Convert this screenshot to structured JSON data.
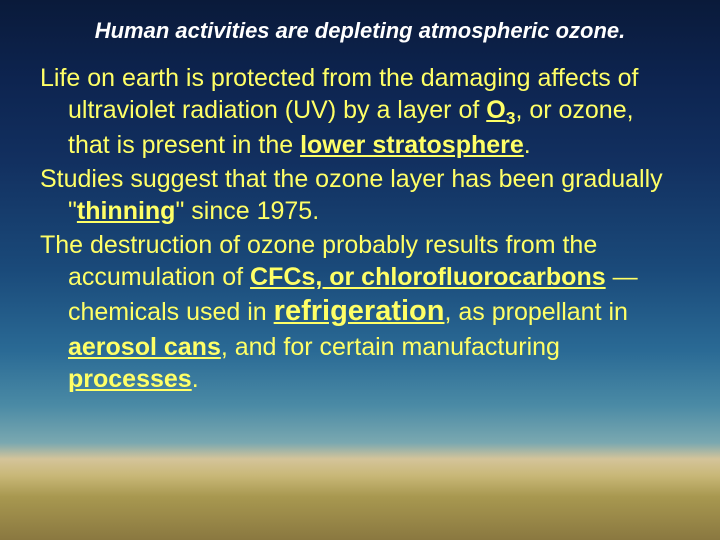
{
  "title": {
    "text": "Human activities are depleting atmospheric ozone.",
    "fontsize": 22,
    "color": "#ffffff"
  },
  "body": {
    "fontsize": 25,
    "color": "#ffff66",
    "p1_a": "Life on earth is protected from the damaging affects of ultraviolet radiation (UV) by a layer of ",
    "p1_o3": "O",
    "p1_sub": "3",
    "p1_b": ", or ozone, that is present in the ",
    "p1_lower": "lower stratosphere",
    "p1_c": ".",
    "p2_a": "Studies suggest that the ozone layer has been gradually \"",
    "p2_thin": "thinning",
    "p2_b": "\" since 1975.",
    "p3_a": "The destruction of ozone probably results from the accumulation of ",
    "p3_cfc": "CFCs, or chlorofluorocarbons",
    "p3_b": " — chemicals used in ",
    "p3_refrig": "refrigeration",
    "p3_c": ", as propellant in ",
    "p3_aero": "aerosol cans",
    "p3_d": ", and for certain manufacturing ",
    "p3_proc": "processes",
    "p3_e": "."
  },
  "refrig_fontsize": 29
}
